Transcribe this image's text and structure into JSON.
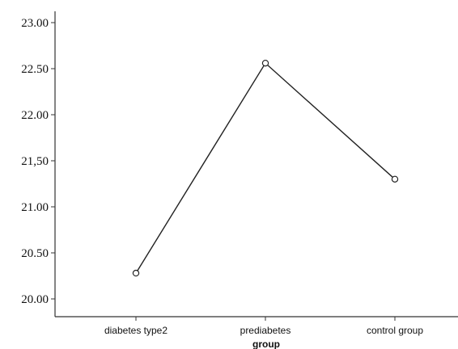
{
  "chart_data": {
    "type": "line",
    "categories": [
      "diabetes type2",
      "prediabetes",
      "control group"
    ],
    "values": [
      20.28,
      22.56,
      21.3
    ],
    "xlabel": "group",
    "ylabel": "",
    "ylim": [
      20.0,
      23.0
    ],
    "yticks": [
      20.0,
      20.5,
      21.0,
      21.5,
      22.0,
      22.5,
      23.0
    ],
    "ytick_labels": [
      "20.00",
      "20.50",
      "21.00",
      "21,50",
      "22.00",
      "22.50",
      "23.00"
    ],
    "grid": false,
    "legend": "none",
    "line_color": "#222222",
    "marker": "open-circle"
  }
}
